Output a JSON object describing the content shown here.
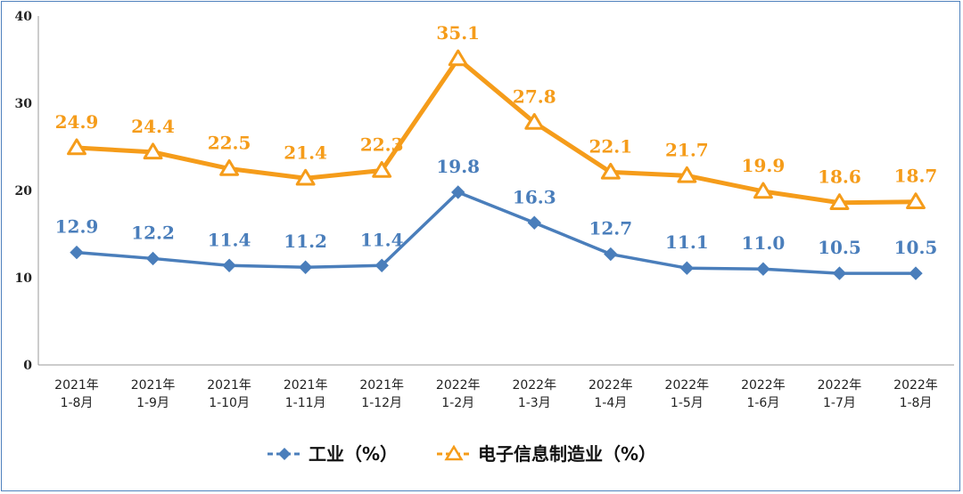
{
  "chart_data": {
    "type": "line",
    "categories": [
      [
        "2021年",
        "1-8月"
      ],
      [
        "2021年",
        "1-9月"
      ],
      [
        "2021年",
        "1-10月"
      ],
      [
        "2021年",
        "1-11月"
      ],
      [
        "2021年",
        "1-12月"
      ],
      [
        "2022年",
        "1-2月"
      ],
      [
        "2022年",
        "1-3月"
      ],
      [
        "2022年",
        "1-4月"
      ],
      [
        "2022年",
        "1-5月"
      ],
      [
        "2022年",
        "1-6月"
      ],
      [
        "2022年",
        "1-7月"
      ],
      [
        "2022年",
        "1-8月"
      ]
    ],
    "series": [
      {
        "name": "工业（%）",
        "color": "#4a7ebb",
        "marker": "diamond",
        "values": [
          12.9,
          12.2,
          11.4,
          11.2,
          11.4,
          19.8,
          16.3,
          12.7,
          11.1,
          11.0,
          10.5,
          10.5
        ],
        "labels": [
          "12.9",
          "12.2",
          "11.4",
          "11.2",
          "11.4",
          "19.8",
          "16.3",
          "12.7",
          "11.1",
          "11.0",
          "10.5",
          "10.5"
        ]
      },
      {
        "name": "电子信息制造业（%）",
        "color": "#f59c1a",
        "marker": "triangle",
        "values": [
          24.9,
          24.4,
          22.5,
          21.4,
          22.3,
          35.1,
          27.8,
          22.1,
          21.7,
          19.9,
          18.6,
          18.7
        ],
        "labels": [
          "24.9",
          "24.4",
          "22.5",
          "21.4",
          "22.3",
          "35.1",
          "27.8",
          "22.1",
          "21.7",
          "19.9",
          "18.6",
          "18.7"
        ]
      }
    ],
    "yticks": [
      "0",
      "10",
      "20",
      "30",
      "40"
    ],
    "ylim": [
      0,
      40
    ],
    "grid": false,
    "legend_position": "bottom"
  }
}
